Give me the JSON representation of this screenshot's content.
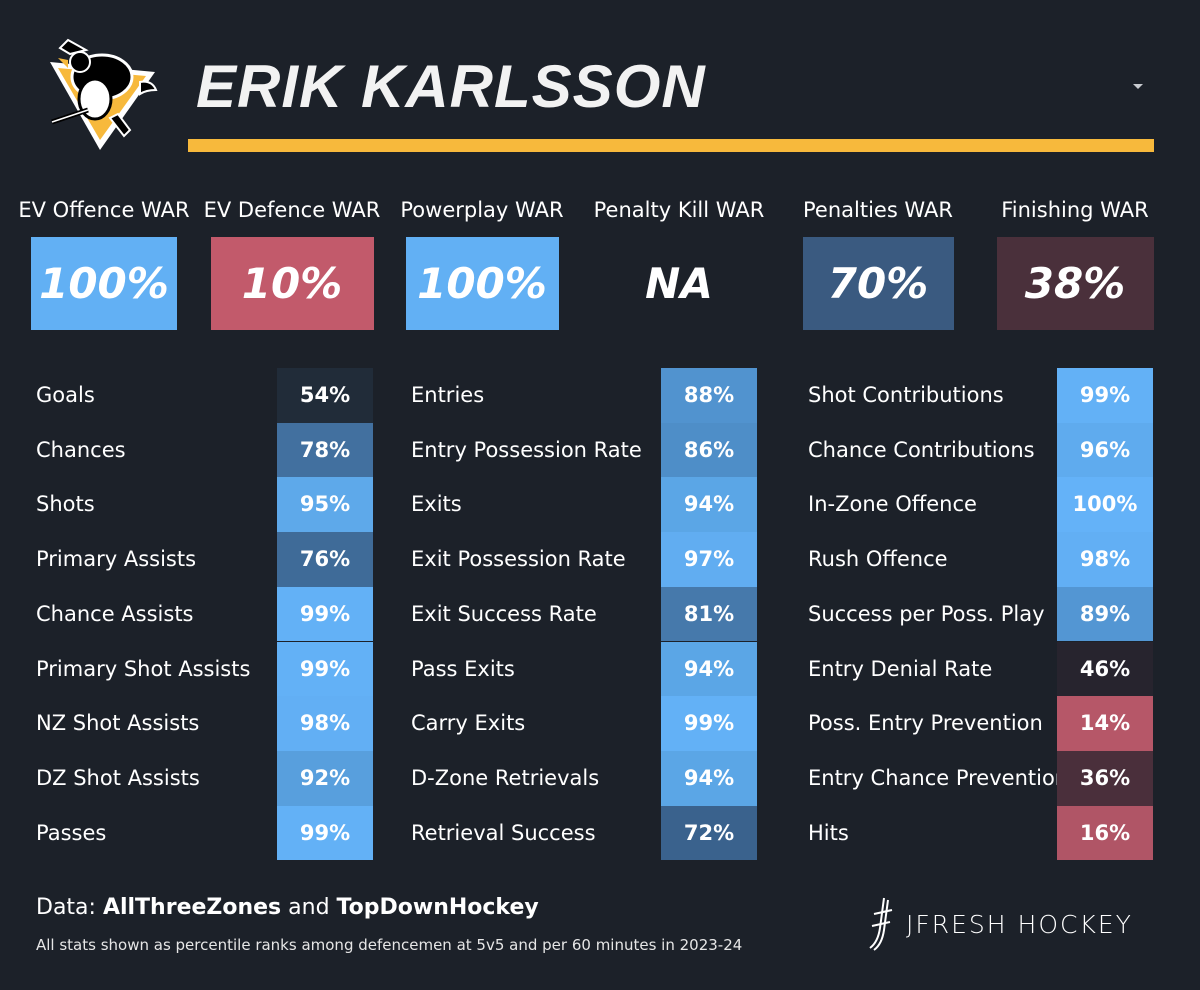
{
  "player": {
    "name": "ERIK KARLSSON",
    "team_logo": "pittsburgh-penguins-logo"
  },
  "colors": {
    "accent": "#f7b93c",
    "background": "#1c2129"
  },
  "war": [
    {
      "label": "EV Offence WAR",
      "value": "100%",
      "color": "#62b0f4"
    },
    {
      "label": "EV Defence WAR",
      "value": "10%",
      "color": "#c25a6b"
    },
    {
      "label": "Powerplay WAR",
      "value": "100%",
      "color": "#62b0f4"
    },
    {
      "label": "Penalty Kill WAR",
      "value": "NA",
      "color": ""
    },
    {
      "label": "Penalties WAR",
      "value": "70%",
      "color": "#3a5a80"
    },
    {
      "label": "Finishing WAR",
      "value": "38%",
      "color": "#4a303b"
    }
  ],
  "stats": [
    [
      {
        "label": "Goals",
        "value": "54%",
        "color": "#212c39"
      },
      {
        "label": "Chances",
        "value": "78%",
        "color": "#42709f"
      },
      {
        "label": "Shots",
        "value": "95%",
        "color": "#5ea9ea"
      },
      {
        "label": "Primary Assists",
        "value": "76%",
        "color": "#3f6b98"
      },
      {
        "label": "Chance Assists",
        "value": "99%",
        "color": "#63b1f6"
      },
      {
        "label": "Primary Shot Assists",
        "value": "99%",
        "color": "#63b1f6"
      },
      {
        "label": "NZ Shot Assists",
        "value": "98%",
        "color": "#62aff4"
      },
      {
        "label": "DZ Shot Assists",
        "value": "92%",
        "color": "#589fdd"
      },
      {
        "label": "Passes",
        "value": "99%",
        "color": "#63b1f6"
      }
    ],
    [
      {
        "label": "Entries",
        "value": "88%",
        "color": "#5193cf"
      },
      {
        "label": "Entry Possession Rate",
        "value": "86%",
        "color": "#4e8ec8"
      },
      {
        "label": "Exits",
        "value": "94%",
        "color": "#5ba6e6"
      },
      {
        "label": "Exit Possession Rate",
        "value": "97%",
        "color": "#61adf1"
      },
      {
        "label": "Exit Success Rate",
        "value": "81%",
        "color": "#4679ab"
      },
      {
        "label": "Pass Exits",
        "value": "94%",
        "color": "#5ba6e6"
      },
      {
        "label": "Carry Exits",
        "value": "99%",
        "color": "#63b1f6"
      },
      {
        "label": "D-Zone Retrievals",
        "value": "94%",
        "color": "#5ba6e6"
      },
      {
        "label": "Retrieval Success",
        "value": "72%",
        "color": "#3a628d"
      }
    ],
    [
      {
        "label": "Shot Contributions",
        "value": "99%",
        "color": "#63b1f6"
      },
      {
        "label": "Chance Contributions",
        "value": "96%",
        "color": "#5fabee"
      },
      {
        "label": "In-Zone Offence",
        "value": "100%",
        "color": "#64b2f8"
      },
      {
        "label": "Rush Offence",
        "value": "98%",
        "color": "#62aff4"
      },
      {
        "label": "Success per Poss. Play",
        "value": "89%",
        "color": "#5396d3"
      },
      {
        "label": "Entry Denial Rate",
        "value": "46%",
        "color": "#27242e"
      },
      {
        "label": "Poss. Entry Prevention",
        "value": "14%",
        "color": "#b65768"
      },
      {
        "label": "Entry Chance Prevention",
        "value": "36%",
        "color": "#4a2f3b"
      },
      {
        "label": "Hits",
        "value": "16%",
        "color": "#b05566"
      }
    ]
  ],
  "footer": {
    "data_prefix": "Data: ",
    "source1": "AllThreeZones",
    "and": " and ",
    "source2": "TopDownHockey",
    "note": "All stats shown as percentile ranks among defencemen at 5v5 and per 60 minutes in 2023-24",
    "brand": "JFRESH HOCKEY",
    "brand_icon": "jfresh-hockey-stick-icon"
  }
}
